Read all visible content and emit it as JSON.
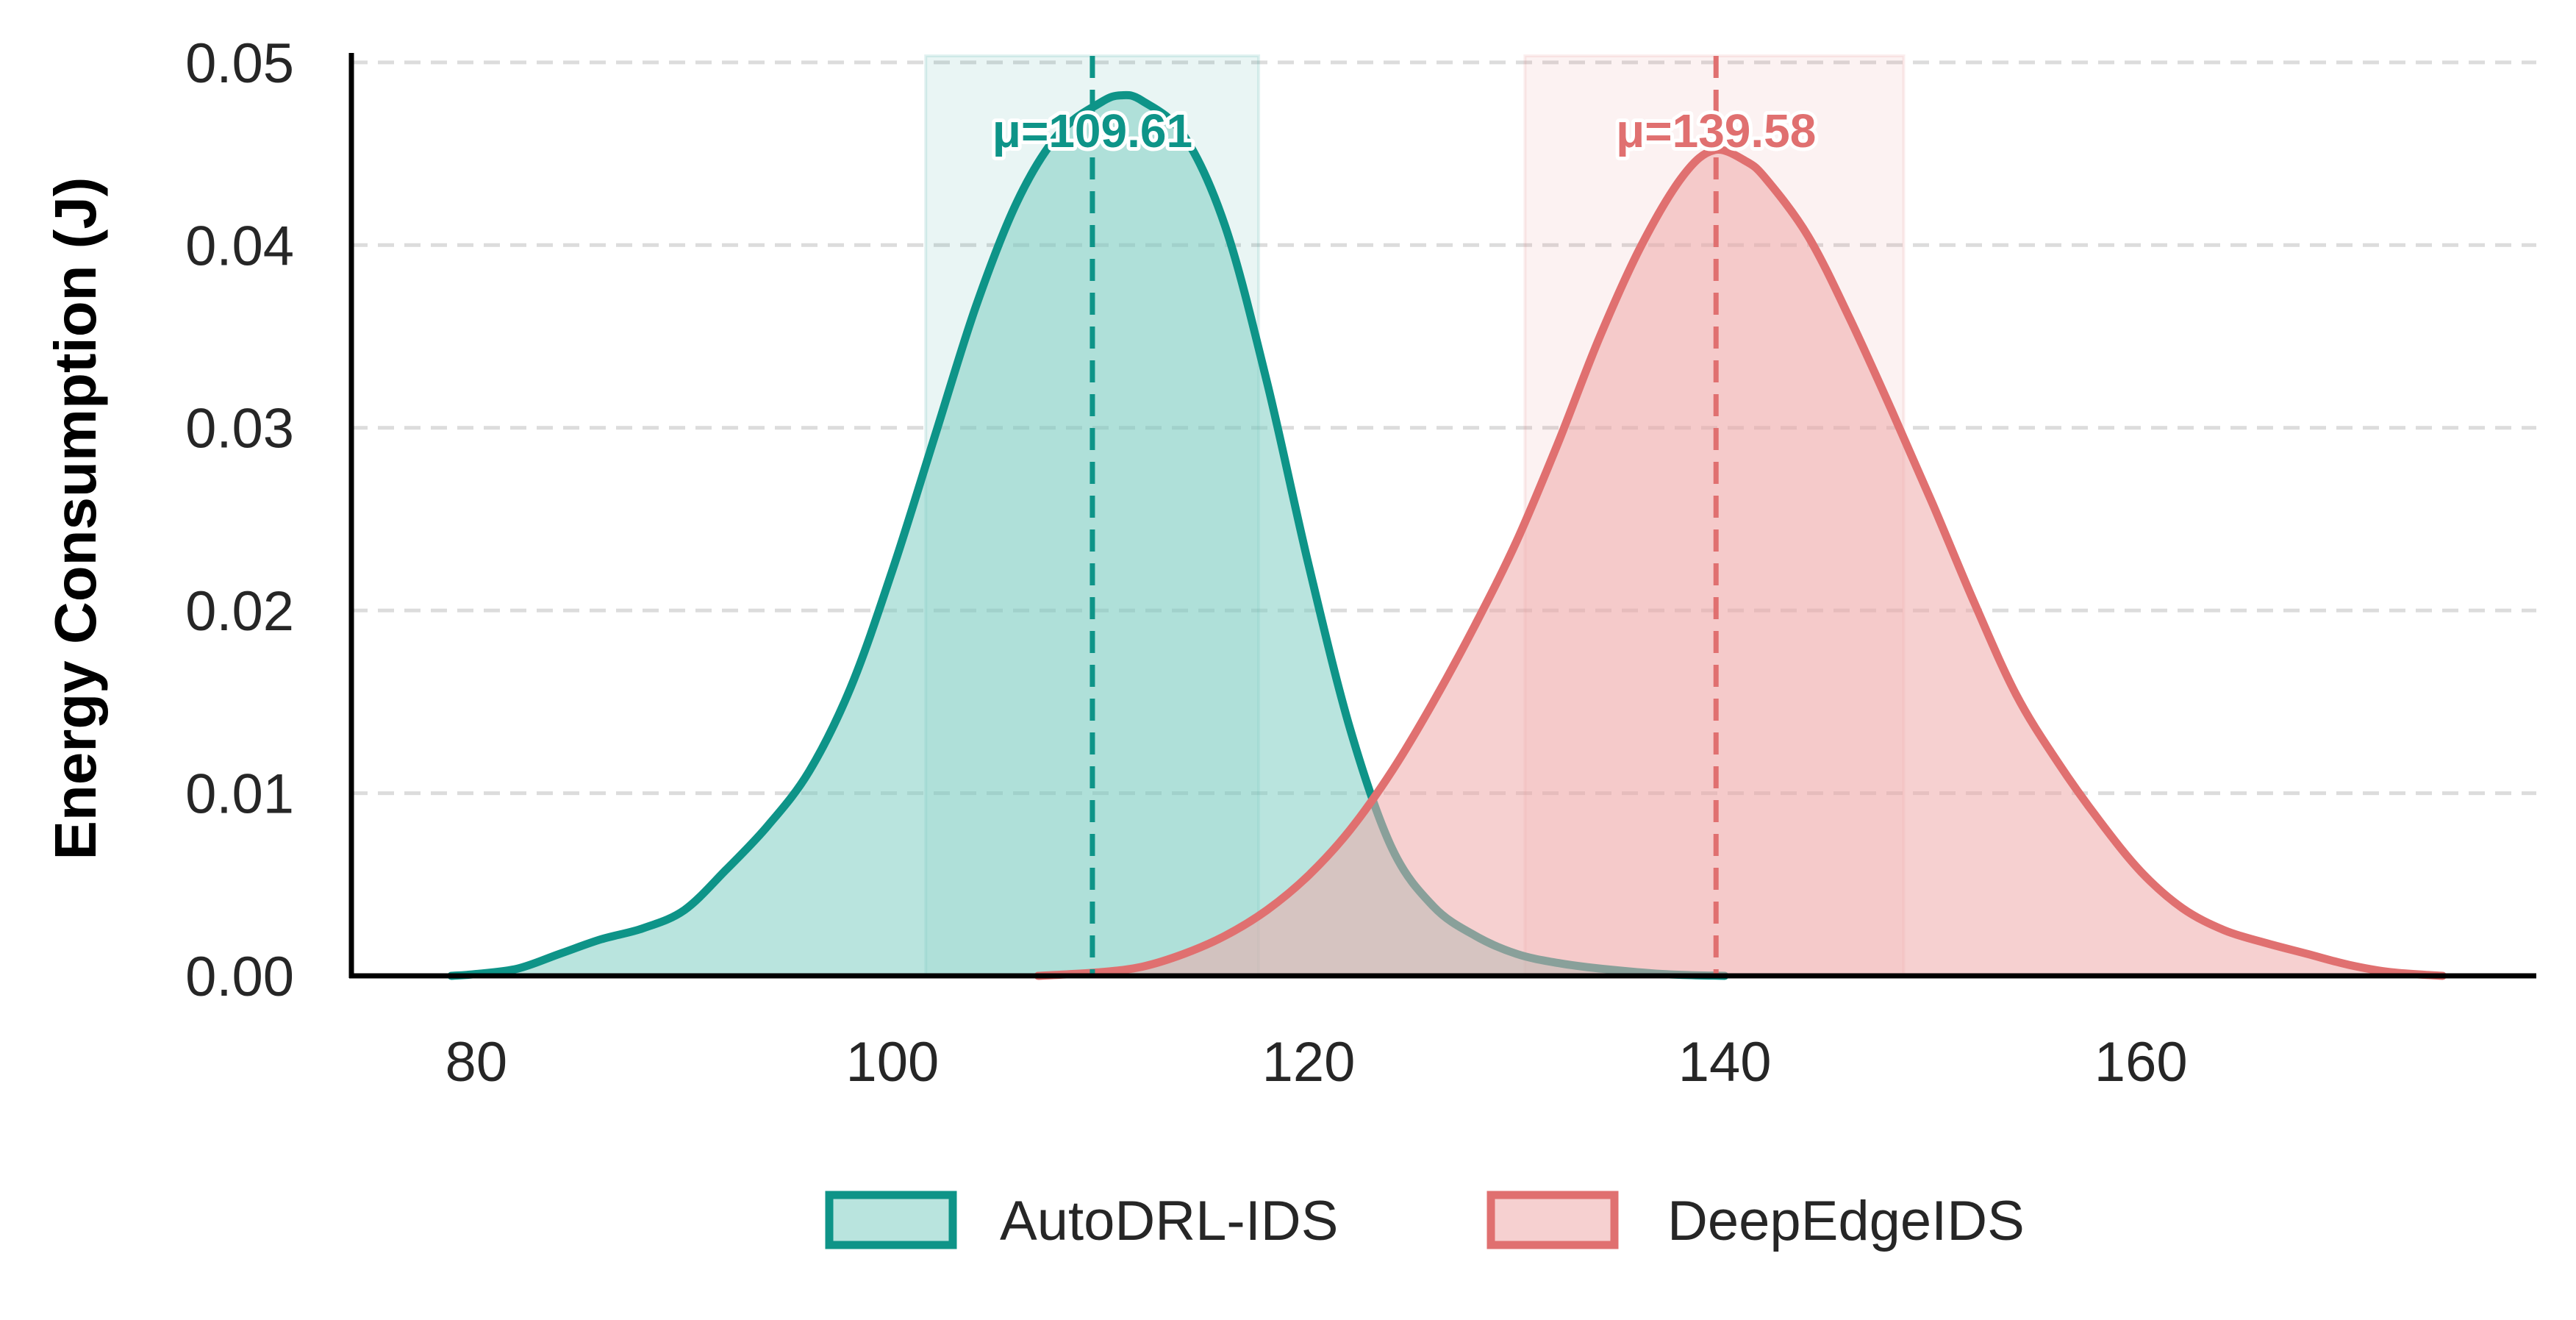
{
  "chart_data": {
    "type": "area",
    "title": "",
    "xlabel": "",
    "ylabel": "Energy Consumption (J)",
    "xlim": [
      74,
      179
    ],
    "ylim": [
      0,
      0.051
    ],
    "xticks": [
      80,
      100,
      120,
      140,
      160
    ],
    "yticks": [
      0.0,
      0.01,
      0.02,
      0.03,
      0.04,
      0.05
    ],
    "xtick_labels": [
      "80",
      "100",
      "120",
      "140",
      "160"
    ],
    "ytick_labels": [
      "0.00",
      "0.01",
      "0.02",
      "0.03",
      "0.04",
      "0.05"
    ],
    "grid": "horizontal dashed",
    "legend_position": "bottom-center",
    "series": [
      {
        "name": "AutoDRL-IDS",
        "color": "#0e9488",
        "fill_color": "#7fcdc2",
        "mean": 109.61,
        "mean_label": "μ=109.61",
        "band": [
          101.6,
          117.6
        ],
        "x": [
          78.8,
          80,
          82,
          84,
          86,
          88,
          90,
          92,
          94,
          96,
          98,
          100,
          102,
          104,
          106,
          108,
          110,
          111,
          112,
          114,
          116,
          118,
          120,
          122,
          124,
          126,
          128,
          130,
          132,
          134,
          137,
          140
        ],
        "y": [
          0.0,
          0.0001,
          0.0004,
          0.0012,
          0.002,
          0.0026,
          0.0036,
          0.0058,
          0.0082,
          0.0112,
          0.0158,
          0.0222,
          0.0294,
          0.0366,
          0.0424,
          0.0461,
          0.0478,
          0.0482,
          0.0479,
          0.046,
          0.041,
          0.0325,
          0.0225,
          0.0135,
          0.007,
          0.0038,
          0.0022,
          0.0012,
          0.0007,
          0.0004,
          0.0001,
          0.0
        ]
      },
      {
        "name": "DeepEdgeIDS",
        "color": "#e07070",
        "fill_color": "#eeaaaa",
        "mean": 139.58,
        "mean_label": "μ=139.58",
        "band": [
          130.4,
          148.6
        ],
        "x": [
          107,
          110,
          112,
          114,
          116,
          118,
          120,
          122,
          124,
          126,
          128,
          130,
          132,
          134,
          136,
          138,
          139.5,
          141,
          142,
          144,
          146,
          148,
          150,
          152,
          154,
          156,
          158,
          160,
          162,
          164,
          166,
          168,
          170,
          172,
          174.5
        ],
        "y": [
          0.0,
          0.0002,
          0.0005,
          0.0012,
          0.0022,
          0.0036,
          0.0055,
          0.008,
          0.0112,
          0.015,
          0.0192,
          0.0238,
          0.0292,
          0.035,
          0.04,
          0.0438,
          0.0452,
          0.0446,
          0.0436,
          0.0405,
          0.036,
          0.031,
          0.0258,
          0.0204,
          0.0154,
          0.0117,
          0.0085,
          0.0057,
          0.0037,
          0.0025,
          0.0018,
          0.0012,
          0.0006,
          0.0002,
          0.0
        ]
      }
    ]
  }
}
